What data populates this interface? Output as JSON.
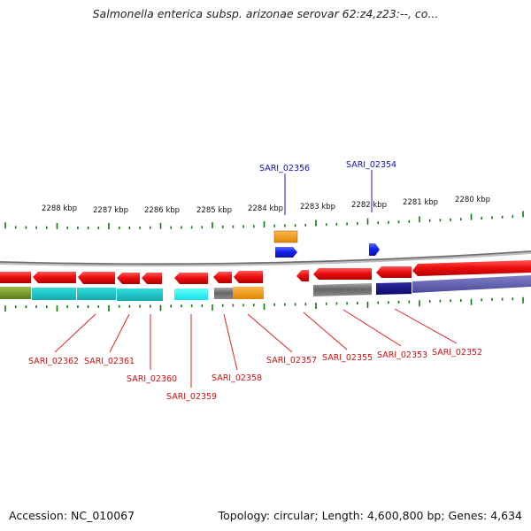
{
  "title": "Salmonella enterica subsp. arizonae serovar 62:z4,z23:--, co...",
  "footer": {
    "accession": "Accession: NC_010067",
    "summary": "Topology: circular; Length: 4,600,800 bp; Genes: 4,634"
  },
  "colors": {
    "forward_gene": "#1a1aff",
    "reverse_gene": "#ee1111",
    "backbone": "#888888",
    "tick": "#117711",
    "label_blue": "#1010b8",
    "label_red": "#cc1111"
  },
  "scale_labels": [
    "2288 kbp",
    "2287 kbp",
    "2286 kbp",
    "2285 kbp",
    "2284 kbp",
    "2283 kbp",
    "2282 kbp",
    "2281 kbp",
    "2280 kbp"
  ],
  "genes_top": [
    {
      "id": "SARI_02356",
      "strand": "forward"
    },
    {
      "id": "SARI_02354",
      "strand": "forward"
    }
  ],
  "genes_bottom": [
    {
      "id": "SARI_02362"
    },
    {
      "id": "SARI_02361"
    },
    {
      "id": "SARI_02360"
    },
    {
      "id": "SARI_02359"
    },
    {
      "id": "SARI_02358"
    },
    {
      "id": "SARI_02357"
    },
    {
      "id": "SARI_02355"
    },
    {
      "id": "SARI_02353"
    },
    {
      "id": "SARI_02352"
    }
  ]
}
